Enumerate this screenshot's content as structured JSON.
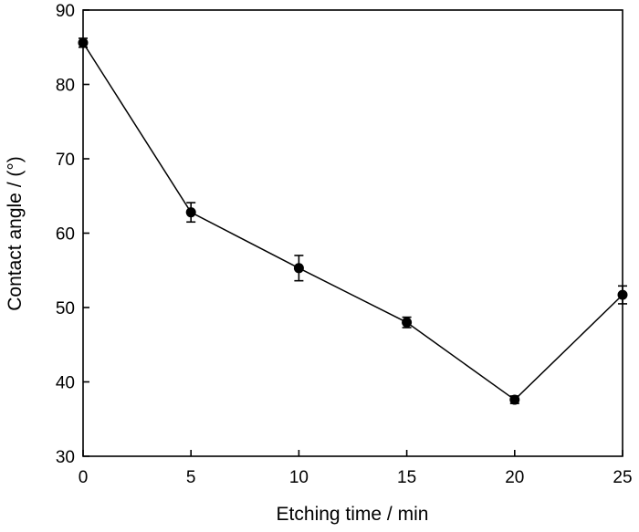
{
  "chart_data": {
    "type": "line",
    "title": "",
    "xlabel": "Etching time / min",
    "ylabel": "Contact angle / (°)",
    "xlim": [
      0,
      25
    ],
    "ylim": [
      30,
      90
    ],
    "x_ticks": [
      0,
      5,
      10,
      15,
      20,
      25
    ],
    "y_ticks": [
      30,
      40,
      50,
      60,
      70,
      80,
      90
    ],
    "grid": false,
    "legend": "none",
    "series": [
      {
        "x": [
          0,
          5,
          10,
          15,
          20,
          25
        ],
        "y": [
          85.6,
          62.8,
          55.3,
          48.0,
          37.6,
          51.7
        ],
        "error": [
          0.6,
          1.3,
          1.7,
          0.7,
          0.5,
          1.2
        ],
        "color": "#000000",
        "marker": "filled-circle"
      }
    ]
  }
}
